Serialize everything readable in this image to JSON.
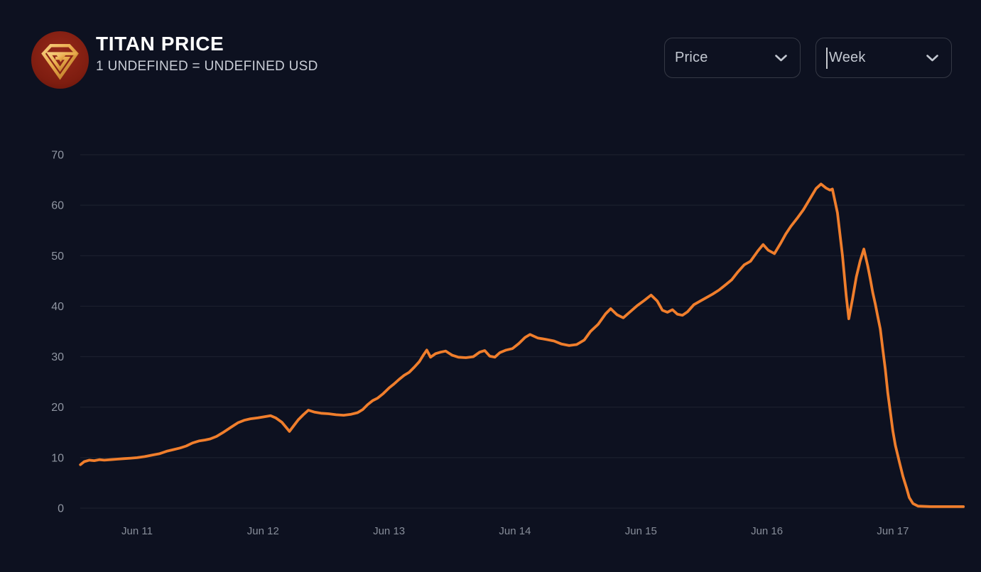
{
  "page": {
    "background": "#0d1120"
  },
  "header": {
    "title": "TITAN PRICE",
    "subtitle": "1 UNDEFINED = UNDEFINED USD",
    "logo": {
      "icon": "titan-gem-icon",
      "circle_color": "#8a2113",
      "gem_color": "#e9b057"
    }
  },
  "controls": {
    "metric_dropdown": {
      "value": "Price",
      "icon": "chevron-down-icon"
    },
    "period_dropdown": {
      "value": "Week",
      "icon": "chevron-down-icon"
    }
  },
  "colors": {
    "accent_orange": "#f07e2c",
    "grid": "#1e2331",
    "axis_text": "#8d93a0",
    "background": "#0d1120"
  },
  "chart_data": {
    "type": "line",
    "title": "TITAN PRICE",
    "xlabel": "",
    "ylabel": "",
    "legend": false,
    "grid": true,
    "ylim": [
      0,
      70
    ],
    "xlim": [
      10.549,
      17.57
    ],
    "y_ticks": [
      0,
      10,
      20,
      30,
      40,
      50,
      60,
      70
    ],
    "x_ticks": [
      {
        "day": 11,
        "label": "Jun 11"
      },
      {
        "day": 12,
        "label": "Jun 12"
      },
      {
        "day": 13,
        "label": "Jun 13"
      },
      {
        "day": 14,
        "label": "Jun 14"
      },
      {
        "day": 15,
        "label": "Jun 15"
      },
      {
        "day": 16,
        "label": "Jun 16"
      },
      {
        "day": 17,
        "label": "Jun 17"
      }
    ],
    "series": [
      {
        "name": "TITAN price (USD)",
        "color": "#f07e2c",
        "points": [
          [
            10.55,
            8.6
          ],
          [
            10.58,
            9.2
          ],
          [
            10.62,
            9.5
          ],
          [
            10.66,
            9.4
          ],
          [
            10.7,
            9.6
          ],
          [
            10.74,
            9.5
          ],
          [
            10.79,
            9.6
          ],
          [
            10.84,
            9.7
          ],
          [
            10.89,
            9.8
          ],
          [
            10.95,
            9.9
          ],
          [
            11.0,
            10.0
          ],
          [
            11.06,
            10.2
          ],
          [
            11.12,
            10.5
          ],
          [
            11.18,
            10.8
          ],
          [
            11.24,
            11.3
          ],
          [
            11.29,
            11.6
          ],
          [
            11.34,
            11.9
          ],
          [
            11.39,
            12.3
          ],
          [
            11.44,
            12.9
          ],
          [
            11.49,
            13.3
          ],
          [
            11.54,
            13.5
          ],
          [
            11.58,
            13.7
          ],
          [
            11.63,
            14.2
          ],
          [
            11.69,
            15.1
          ],
          [
            11.75,
            16.1
          ],
          [
            11.8,
            16.9
          ],
          [
            11.85,
            17.4
          ],
          [
            11.9,
            17.7
          ],
          [
            11.96,
            17.9
          ],
          [
            12.01,
            18.1
          ],
          [
            12.06,
            18.3
          ],
          [
            12.1,
            17.9
          ],
          [
            12.15,
            17.0
          ],
          [
            12.19,
            15.8
          ],
          [
            12.21,
            15.2
          ],
          [
            12.24,
            16.2
          ],
          [
            12.28,
            17.5
          ],
          [
            12.32,
            18.5
          ],
          [
            12.36,
            19.4
          ],
          [
            12.41,
            19.0
          ],
          [
            12.46,
            18.8
          ],
          [
            12.52,
            18.7
          ],
          [
            12.58,
            18.5
          ],
          [
            12.64,
            18.4
          ],
          [
            12.7,
            18.6
          ],
          [
            12.75,
            18.9
          ],
          [
            12.79,
            19.5
          ],
          [
            12.83,
            20.5
          ],
          [
            12.87,
            21.3
          ],
          [
            12.91,
            21.8
          ],
          [
            12.95,
            22.6
          ],
          [
            13.0,
            23.8
          ],
          [
            13.04,
            24.6
          ],
          [
            13.08,
            25.5
          ],
          [
            13.12,
            26.3
          ],
          [
            13.16,
            26.9
          ],
          [
            13.2,
            27.9
          ],
          [
            13.24,
            29.0
          ],
          [
            13.27,
            30.2
          ],
          [
            13.3,
            31.3
          ],
          [
            13.33,
            29.9
          ],
          [
            13.37,
            30.6
          ],
          [
            13.41,
            30.9
          ],
          [
            13.45,
            31.1
          ],
          [
            13.5,
            30.3
          ],
          [
            13.55,
            29.9
          ],
          [
            13.61,
            29.8
          ],
          [
            13.67,
            30.0
          ],
          [
            13.72,
            30.9
          ],
          [
            13.76,
            31.2
          ],
          [
            13.8,
            30.1
          ],
          [
            13.84,
            29.9
          ],
          [
            13.88,
            30.8
          ],
          [
            13.93,
            31.3
          ],
          [
            13.98,
            31.6
          ],
          [
            14.03,
            32.6
          ],
          [
            14.08,
            33.8
          ],
          [
            14.12,
            34.4
          ],
          [
            14.18,
            33.7
          ],
          [
            14.25,
            33.4
          ],
          [
            14.31,
            33.1
          ],
          [
            14.37,
            32.5
          ],
          [
            14.43,
            32.2
          ],
          [
            14.49,
            32.4
          ],
          [
            14.55,
            33.3
          ],
          [
            14.6,
            35.0
          ],
          [
            14.66,
            36.4
          ],
          [
            14.72,
            38.5
          ],
          [
            14.76,
            39.5
          ],
          [
            14.81,
            38.3
          ],
          [
            14.86,
            37.7
          ],
          [
            14.91,
            38.8
          ],
          [
            14.97,
            40.1
          ],
          [
            15.03,
            41.2
          ],
          [
            15.08,
            42.2
          ],
          [
            15.13,
            41.0
          ],
          [
            15.17,
            39.2
          ],
          [
            15.21,
            38.8
          ],
          [
            15.25,
            39.3
          ],
          [
            15.29,
            38.4
          ],
          [
            15.33,
            38.2
          ],
          [
            15.37,
            38.9
          ],
          [
            15.42,
            40.3
          ],
          [
            15.47,
            41.0
          ],
          [
            15.52,
            41.7
          ],
          [
            15.57,
            42.4
          ],
          [
            15.62,
            43.2
          ],
          [
            15.68,
            44.4
          ],
          [
            15.72,
            45.2
          ],
          [
            15.77,
            46.8
          ],
          [
            15.82,
            48.2
          ],
          [
            15.87,
            48.9
          ],
          [
            15.93,
            51.0
          ],
          [
            15.97,
            52.2
          ],
          [
            16.01,
            51.1
          ],
          [
            16.06,
            50.4
          ],
          [
            16.11,
            52.5
          ],
          [
            16.15,
            54.3
          ],
          [
            16.19,
            55.8
          ],
          [
            16.24,
            57.4
          ],
          [
            16.29,
            59.1
          ],
          [
            16.34,
            61.2
          ],
          [
            16.39,
            63.3
          ],
          [
            16.43,
            64.2
          ],
          [
            16.47,
            63.4
          ],
          [
            16.5,
            63.0
          ],
          [
            16.52,
            63.2
          ],
          [
            16.56,
            58.5
          ],
          [
            16.6,
            50.0
          ],
          [
            16.63,
            42.0
          ],
          [
            16.65,
            37.5
          ],
          [
            16.68,
            41.5
          ],
          [
            16.71,
            45.8
          ],
          [
            16.74,
            48.9
          ],
          [
            16.77,
            51.3
          ],
          [
            16.8,
            48.0
          ],
          [
            16.82,
            45.5
          ],
          [
            16.84,
            42.7
          ],
          [
            16.86,
            40.5
          ],
          [
            16.88,
            38.0
          ],
          [
            16.9,
            35.5
          ],
          [
            16.92,
            31.5
          ],
          [
            16.94,
            27.5
          ],
          [
            16.96,
            22.8
          ],
          [
            16.98,
            19.0
          ],
          [
            17.0,
            15.3
          ],
          [
            17.02,
            12.4
          ],
          [
            17.05,
            9.3
          ],
          [
            17.08,
            6.3
          ],
          [
            17.11,
            3.9
          ],
          [
            17.13,
            2.1
          ],
          [
            17.16,
            0.9
          ],
          [
            17.2,
            0.4
          ],
          [
            17.3,
            0.3
          ],
          [
            17.45,
            0.3
          ],
          [
            17.56,
            0.3
          ]
        ]
      }
    ]
  }
}
